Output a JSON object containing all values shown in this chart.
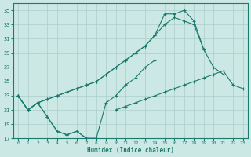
{
  "xlabel": "Humidex (Indice chaleur)",
  "x_values": [
    0,
    1,
    2,
    3,
    4,
    5,
    6,
    7,
    8,
    9,
    10,
    11,
    12,
    13,
    14,
    15,
    16,
    17,
    18,
    19,
    20,
    21,
    22,
    23
  ],
  "line_min": [
    23,
    21,
    22,
    20,
    18,
    17.5,
    18,
    17,
    17,
    null,
    null,
    null,
    null,
    null,
    null,
    null,
    null,
    null,
    null,
    null,
    null,
    null,
    null,
    null
  ],
  "line_mid_low": [
    23,
    21,
    22,
    20,
    18,
    17.5,
    18,
    17,
    17,
    22,
    23,
    24.5,
    25.5,
    27,
    28,
    null,
    null,
    null,
    null,
    null,
    null,
    null,
    null,
    null
  ],
  "line_upper1": [
    23,
    21,
    22,
    22.5,
    23,
    23.5,
    24,
    24.5,
    25,
    26,
    27,
    28,
    29,
    30,
    31.5,
    34.5,
    34.5,
    35,
    33.5,
    29.5,
    null,
    null,
    null,
    null
  ],
  "line_upper2": [
    23,
    21,
    22,
    22.5,
    23,
    23.5,
    24,
    24.5,
    25,
    26,
    27,
    28,
    29,
    30,
    31.5,
    33,
    34,
    33.5,
    33,
    29.5,
    27,
    26,
    null,
    null
  ],
  "line_bottom": [
    null,
    null,
    null,
    null,
    null,
    null,
    null,
    null,
    null,
    null,
    21,
    21.5,
    22,
    22.5,
    23,
    23.5,
    24,
    24.5,
    25,
    25.5,
    26,
    26.5,
    24.5,
    24
  ],
  "ylim": [
    17,
    36
  ],
  "xlim": [
    -0.5,
    23.5
  ],
  "yticks": [
    17,
    19,
    21,
    23,
    25,
    27,
    29,
    31,
    33,
    35
  ],
  "xticks": [
    0,
    1,
    2,
    3,
    4,
    5,
    6,
    7,
    8,
    9,
    10,
    11,
    12,
    13,
    14,
    15,
    16,
    17,
    18,
    19,
    20,
    21,
    22,
    23
  ],
  "line_color": "#1a7a6e",
  "bg_color": "#cce8e4",
  "grid_color": "#aaceca",
  "figsize": [
    3.2,
    2.0
  ],
  "dpi": 100
}
